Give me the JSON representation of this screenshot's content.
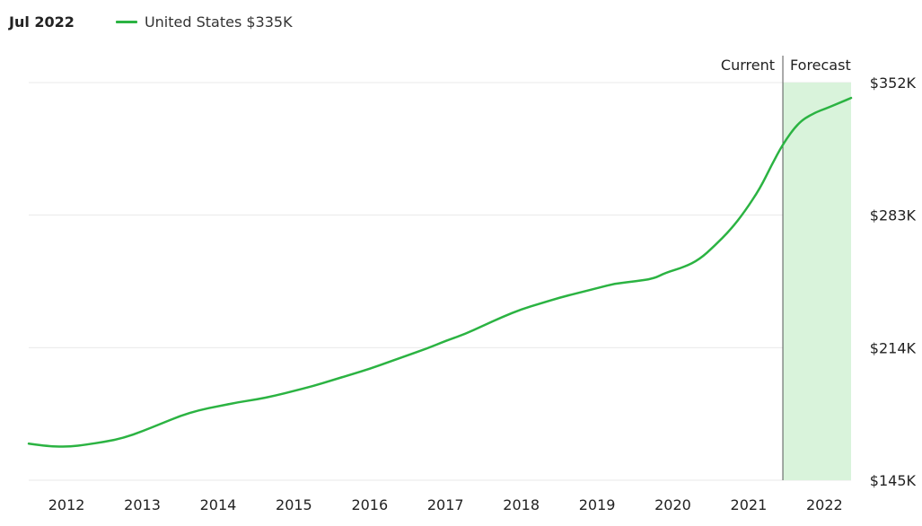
{
  "header": {
    "date_label": "Jul 2022",
    "legend_label": "United States $335K"
  },
  "colors": {
    "line": "#2bb342",
    "forecast_fill": "#d9f3db",
    "grid": "#eaeaea",
    "divider": "#555555"
  },
  "chart_data": {
    "type": "line",
    "title": "",
    "xlabel": "",
    "ylabel": "",
    "x_ticks": [
      "2012",
      "2013",
      "2014",
      "2015",
      "2016",
      "2017",
      "2018",
      "2019",
      "2020",
      "2021",
      "2022"
    ],
    "y_ticks": [
      "$145K",
      "$214K",
      "$283K",
      "$352K"
    ],
    "ylim": [
      145,
      352
    ],
    "xlim": [
      2011.75,
      2022.6
    ],
    "annotations": {
      "current": "Current",
      "forecast": "Forecast"
    },
    "forecast_start": 2021.7,
    "grid": true,
    "series": [
      {
        "name": "United States $335K",
        "x": [
          2011.75,
          2011.95,
          2012.1,
          2012.3,
          2012.5,
          2012.75,
          2013.0,
          2013.25,
          2013.5,
          2013.75,
          2014.0,
          2014.25,
          2014.5,
          2014.75,
          2015.0,
          2015.25,
          2015.5,
          2015.75,
          2016.0,
          2016.25,
          2016.5,
          2016.75,
          2017.0,
          2017.25,
          2017.5,
          2017.75,
          2018.0,
          2018.25,
          2018.5,
          2018.75,
          2019.0,
          2019.25,
          2019.5,
          2019.75,
          2020.0,
          2020.15,
          2020.4,
          2020.6,
          2020.8,
          2021.0,
          2021.2,
          2021.4,
          2021.55,
          2021.7,
          2021.9,
          2022.1,
          2022.3,
          2022.45,
          2022.6
        ],
        "values": [
          164,
          163,
          162.5,
          162.5,
          163.5,
          165,
          167,
          170.5,
          174.5,
          178.5,
          181.5,
          183.5,
          185.5,
          187,
          189,
          191.5,
          194,
          197,
          200,
          203,
          206.5,
          210,
          213.5,
          217.5,
          221,
          225.5,
          230,
          234,
          237,
          240,
          242.5,
          245,
          247.5,
          248.5,
          250,
          253,
          256,
          260,
          267,
          275,
          285,
          297,
          309,
          320,
          331,
          336,
          339,
          341.5,
          344
        ]
      }
    ]
  }
}
